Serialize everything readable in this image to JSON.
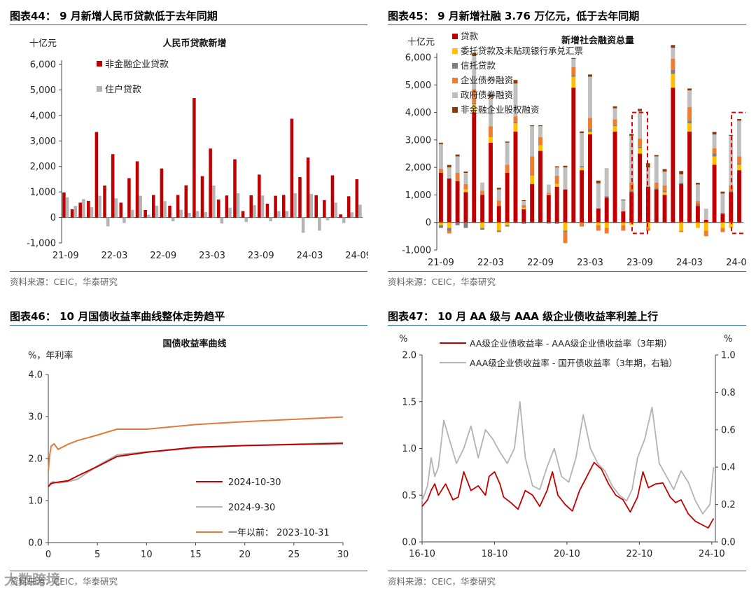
{
  "watermark": "大数跨境",
  "colors": {
    "red": "#c00000",
    "gray": "#b3b3b3",
    "yellow": "#ffc000",
    "darkgray": "#7f7f7f",
    "orange": "#ed7d31",
    "lightgray": "#bfbfbf",
    "brown": "#843c0c",
    "orangeline": "#e07b39",
    "rule": "#1f5f8f"
  },
  "panels": [
    {
      "title": "图表44： 9 月新增人民币贷款低于去年同期",
      "source": "资料来源：CEIC，华泰研究"
    },
    {
      "title": "图表45： 9 月新增社融 3.76 万亿元，低于去年同期",
      "source": "资料来源：CEIC，华泰研究"
    },
    {
      "title": "图表46： 10 月国债收益率曲线整体走势趋平",
      "source": "资料来源：CEIC，华泰研究"
    },
    {
      "title": "图表47： 10 月 AA 级与 AAA 级企业债收益率利差上行",
      "source": "资料来源：CEIC，华泰研究"
    }
  ],
  "chart_data": [
    {
      "type": "bar",
      "title": "人民币贷款新增",
      "unit": "十亿元",
      "ylim": [
        -1000,
        6000
      ],
      "yticks": [
        -1000,
        0,
        1000,
        2000,
        3000,
        4000,
        5000,
        6000
      ],
      "ytick_labels": [
        "-1,000",
        "0",
        "1,000",
        "2,000",
        "3,000",
        "4,000",
        "5,000",
        "6,000"
      ],
      "xtick_labels": [
        "21-09",
        "22-03",
        "22-09",
        "23-03",
        "23-09",
        "24-03",
        "24-09"
      ],
      "xtick_index": [
        0,
        6,
        12,
        18,
        24,
        30,
        36
      ],
      "legend": [
        "非金融企业贷款",
        "住户贷款"
      ],
      "series": [
        {
          "name": "非金融企业贷款",
          "color": "#c00000",
          "values": [
            980,
            320,
            580,
            650,
            3350,
            1250,
            2480,
            580,
            1540,
            2200,
            290,
            880,
            1920,
            460,
            880,
            1260,
            4680,
            1620,
            2700,
            700,
            860,
            2280,
            250,
            870,
            1680,
            540,
            850,
            880,
            3870,
            1580,
            2350,
            870,
            680,
            1650,
            120,
            830,
            1500
          ]
        },
        {
          "name": "住户贷款",
          "color": "#b3b3b3",
          "values": [
            790,
            450,
            720,
            400,
            850,
            -350,
            750,
            -220,
            300,
            850,
            110,
            460,
            640,
            -150,
            300,
            180,
            250,
            210,
            1250,
            -240,
            380,
            950,
            -180,
            480,
            860,
            -150,
            250,
            250,
            950,
            -600,
            920,
            -520,
            -110,
            580,
            -220,
            200,
            500
          ]
        }
      ]
    },
    {
      "type": "bar",
      "title": "新增社会融资总量",
      "unit": "十亿元",
      "ylim": [
        -1000,
        6000
      ],
      "yticks": [
        -1000,
        0,
        1000,
        2000,
        3000,
        4000,
        5000,
        6000
      ],
      "ytick_labels": [
        "-1,000",
        "0",
        "1,000",
        "2,000",
        "3,000",
        "4,000",
        "5,000",
        "6,000"
      ],
      "xtick_labels": [
        "21-09",
        "22-03",
        "22-09",
        "23-03",
        "23-09",
        "24-03",
        "24-09"
      ],
      "xtick_index": [
        0,
        6,
        12,
        18,
        24,
        30,
        36
      ],
      "legend": [
        "贷款",
        "委托贷款及未贴现银行承兑汇票",
        "信托贷款",
        "企业债券融资",
        "政府债券融资",
        "非金融企业股权融资"
      ],
      "highlight_index": [
        24,
        36
      ],
      "totals": [
        2900,
        1590,
        2370,
        2350,
        6170,
        1190,
        4650,
        910,
        2790,
        5180,
        760,
        3530,
        3530,
        1340,
        1990,
        1310,
        5980,
        3160,
        5380,
        1220,
        1560,
        4220,
        530,
        3120,
        4130,
        1850,
        2450,
        1940,
        6450,
        1520,
        4870,
        1240,
        -200,
        3290,
        770,
        2980,
        3760
      ],
      "series": [
        {
          "name": "贷款",
          "color": "#c00000",
          "values": [
            1800,
            1600,
            1500,
            1100,
            4000,
            1000,
            2900,
            600,
            1800,
            3300,
            480,
            1400,
            2600,
            1000,
            1300,
            1200,
            4900,
            1900,
            3200,
            500,
            900,
            3300,
            400,
            1100,
            2500,
            1300,
            1200,
            1000,
            4900,
            1400,
            3300,
            600,
            100,
            2100,
            300,
            1100,
            1900
          ]
        },
        {
          "name": "委托贷款及未贴现银行承兑汇票",
          "color": "#ffc000",
          "values": [
            -100,
            -200,
            0,
            100,
            300,
            -200,
            200,
            -300,
            -100,
            300,
            50,
            300,
            200,
            30,
            100,
            -300,
            400,
            100,
            100,
            -100,
            -200,
            200,
            -100,
            -100,
            200,
            -200,
            0,
            100,
            500,
            -300,
            300,
            -200,
            -300,
            300,
            -200,
            -200,
            200
          ]
        },
        {
          "name": "信托贷款",
          "color": "#7f7f7f",
          "values": [
            -100,
            -100,
            -100,
            -200,
            50,
            -50,
            0,
            -50,
            -50,
            50,
            -50,
            0,
            0,
            -30,
            -50,
            -50,
            50,
            50,
            100,
            20,
            50,
            50,
            0,
            50,
            50,
            0,
            50,
            50,
            150,
            50,
            100,
            80,
            0,
            100,
            50,
            50,
            50
          ]
        },
        {
          "name": "企业债券融资",
          "color": "#ed7d31",
          "values": [
            150,
            -100,
            300,
            200,
            500,
            150,
            400,
            200,
            300,
            200,
            100,
            700,
            300,
            50,
            300,
            -400,
            300,
            -150,
            400,
            -200,
            -200,
            200,
            -200,
            300,
            300,
            -100,
            200,
            200,
            400,
            -50,
            500,
            100,
            -200,
            200,
            -150,
            200,
            250
          ]
        },
        {
          "name": "政府债券融资",
          "color": "#bfbfbf",
          "values": [
            900,
            400,
            600,
            400,
            1200,
            300,
            1050,
            400,
            800,
            1200,
            150,
            1100,
            400,
            300,
            300,
            800,
            300,
            1200,
            1500,
            900,
            1000,
            400,
            400,
            1700,
            1000,
            700,
            950,
            500,
            400,
            300,
            600,
            600,
            400,
            500,
            700,
            1800,
            1300
          ]
        },
        {
          "name": "非金融企业股权融资",
          "color": "#843c0c",
          "values": [
            50,
            90,
            70,
            50,
            120,
            -10,
            100,
            60,
            40,
            130,
            30,
            30,
            30,
            -10,
            40,
            60,
            30,
            60,
            80,
            100,
            10,
            70,
            30,
            70,
            80,
            150,
            50,
            90,
            100,
            120,
            70,
            60,
            0,
            90,
            70,
            30,
            60
          ]
        }
      ]
    },
    {
      "type": "line",
      "title": "国债收益率曲线",
      "ylabel": "%，年利率",
      "xlim": [
        0,
        30
      ],
      "ylim": [
        0,
        4
      ],
      "xticks": [
        0,
        5,
        10,
        15,
        20,
        25,
        30
      ],
      "yticks": [
        0,
        1,
        2,
        3,
        4
      ],
      "ytick_labels": [
        "0.0",
        "1.0",
        "2.0",
        "3.0",
        "4.0"
      ],
      "series": [
        {
          "name": "2024-10-30",
          "color": "#c00000",
          "x": [
            0,
            0.25,
            0.5,
            1,
            2,
            3,
            5,
            7,
            10,
            15,
            20,
            30
          ],
          "y": [
            1.33,
            1.4,
            1.42,
            1.44,
            1.47,
            1.59,
            1.81,
            2.05,
            2.15,
            2.27,
            2.31,
            2.36
          ]
        },
        {
          "name": "2024-9-30",
          "color": "#b3b3b3",
          "x": [
            0,
            0.25,
            0.5,
            1,
            2,
            3,
            5,
            7,
            10,
            15,
            20,
            30
          ],
          "y": [
            1.33,
            1.43,
            1.45,
            1.42,
            1.45,
            1.51,
            1.83,
            2.09,
            2.16,
            2.25,
            2.31,
            2.38
          ]
        },
        {
          "name": "一年以前： 2023-10-31",
          "color": "#e07b39",
          "x": [
            0,
            0.15,
            0.3,
            0.6,
            1,
            2,
            3,
            5,
            7,
            10,
            15,
            20,
            30
          ],
          "y": [
            1.7,
            2.1,
            2.3,
            2.35,
            2.22,
            2.34,
            2.43,
            2.56,
            2.7,
            2.7,
            2.81,
            2.88,
            2.99
          ]
        }
      ]
    },
    {
      "type": "line",
      "title": "",
      "ylabel_left": "%",
      "ylabel_right": "%",
      "xlim": [
        2016.75,
        2024.85
      ],
      "ylim_left": [
        0,
        2
      ],
      "ylim_right": [
        0,
        1
      ],
      "yticks_left": [
        0,
        0.5,
        1,
        1.5,
        2
      ],
      "ytick_labels_left": [
        "0.0",
        "0.5",
        "1.0",
        "1.5",
        "2.0"
      ],
      "yticks_right": [
        0,
        0.2,
        0.4,
        0.6,
        0.8,
        1.0
      ],
      "ytick_labels_right": [
        "0.0",
        "0.2",
        "0.4",
        "0.6",
        "0.8",
        "1.0"
      ],
      "xtick_labels": [
        "16-10",
        "18-10",
        "20-10",
        "22-10",
        "24-10"
      ],
      "xticks": [
        2016.75,
        2018.75,
        2020.75,
        2022.75,
        2024.75
      ],
      "series": [
        {
          "name": "AA级企业债收益率 - AAA级企业债收益率（3年期）",
          "color": "#c00000",
          "axis": "left",
          "x": [
            2016.75,
            2016.9,
            2017.0,
            2017.1,
            2017.2,
            2017.4,
            2017.6,
            2017.75,
            2017.9,
            2018.1,
            2018.3,
            2018.5,
            2018.6,
            2018.75,
            2018.9,
            2019.0,
            2019.2,
            2019.4,
            2019.6,
            2019.8,
            2020.0,
            2020.2,
            2020.35,
            2020.5,
            2020.7,
            2020.9,
            2021.1,
            2021.3,
            2021.5,
            2021.7,
            2021.9,
            2022.1,
            2022.3,
            2022.5,
            2022.7,
            2022.85,
            2023.0,
            2023.2,
            2023.4,
            2023.6,
            2023.75,
            2023.9,
            2024.1,
            2024.3,
            2024.5,
            2024.65,
            2024.8
          ],
          "y": [
            0.38,
            0.45,
            0.55,
            0.62,
            0.5,
            0.62,
            0.45,
            0.48,
            0.75,
            0.55,
            0.6,
            0.5,
            0.7,
            0.75,
            0.62,
            0.48,
            0.42,
            0.35,
            0.55,
            0.5,
            0.38,
            0.55,
            0.75,
            0.5,
            0.4,
            0.33,
            0.55,
            0.7,
            0.85,
            0.78,
            0.62,
            0.5,
            0.45,
            0.32,
            0.48,
            0.75,
            0.58,
            0.62,
            0.63,
            0.48,
            0.42,
            0.45,
            0.3,
            0.22,
            0.18,
            0.15,
            0.25
          ]
        },
        {
          "name": "AAA级企业债收益率 - 国开债收益率（3年期，右轴）",
          "color": "#b3b3b3",
          "axis": "right",
          "x": [
            2016.75,
            2016.9,
            2017.0,
            2017.1,
            2017.2,
            2017.35,
            2017.5,
            2017.7,
            2017.9,
            2018.1,
            2018.3,
            2018.5,
            2018.7,
            2018.9,
            2019.1,
            2019.3,
            2019.45,
            2019.6,
            2019.8,
            2020.0,
            2020.2,
            2020.4,
            2020.6,
            2020.8,
            2021.0,
            2021.2,
            2021.4,
            2021.6,
            2021.8,
            2022.0,
            2022.2,
            2022.4,
            2022.55,
            2022.7,
            2022.9,
            2023.1,
            2023.3,
            2023.5,
            2023.7,
            2023.9,
            2024.1,
            2024.3,
            2024.5,
            2024.7,
            2024.8
          ],
          "y": [
            0.22,
            0.3,
            0.45,
            0.35,
            0.4,
            0.65,
            0.55,
            0.42,
            0.5,
            0.62,
            0.45,
            0.6,
            0.55,
            0.48,
            0.42,
            0.5,
            0.75,
            0.45,
            0.3,
            0.28,
            0.4,
            0.5,
            0.35,
            0.32,
            0.45,
            0.68,
            0.5,
            0.42,
            0.38,
            0.3,
            0.25,
            0.22,
            0.28,
            0.45,
            0.55,
            0.72,
            0.42,
            0.35,
            0.28,
            0.38,
            0.32,
            0.22,
            0.15,
            0.2,
            0.4
          ]
        }
      ]
    }
  ]
}
